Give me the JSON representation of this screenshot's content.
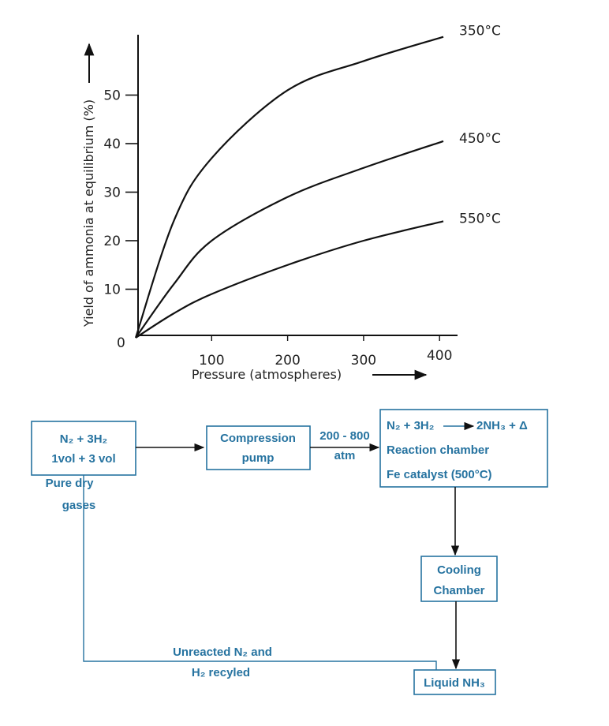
{
  "chart_data": {
    "type": "line",
    "xlabel": "Pressure (atmospheres)",
    "ylabel": "Yield of ammonia at equilibrium (%)",
    "xlim": [
      0,
      420
    ],
    "ylim": [
      0,
      65
    ],
    "x_ticks": [
      "100",
      "200",
      "300",
      "400"
    ],
    "y_ticks": [
      "10",
      "20",
      "30",
      "40",
      "50"
    ],
    "origin_label": "0",
    "grid": false,
    "x": [
      0,
      50,
      100,
      200,
      300,
      405
    ],
    "series": [
      {
        "name": "350°C",
        "values": [
          0,
          24,
          37,
          51,
          57,
          62
        ]
      },
      {
        "name": "450°C",
        "values": [
          0,
          11,
          20,
          29,
          35,
          40.5
        ]
      },
      {
        "name": "550°C",
        "values": [
          0,
          5,
          9,
          15,
          20,
          24
        ]
      }
    ]
  },
  "diagram": {
    "color": "#2673a0",
    "feed": {
      "line1": "N₂ + 3H₂",
      "line2": "1vol + 3 vol",
      "note1": "Pure dry",
      "note2": "gases"
    },
    "pump": {
      "line1": "Compression",
      "line2": "pump"
    },
    "pressure": {
      "line1": "200 - 800",
      "line2": "atm"
    },
    "reactor": {
      "line1a": "N₂ + 3H₂",
      "line1b": "2NH₃ + Δ",
      "line2": "Reaction chamber",
      "line3": "Fe catalyst (500°C)"
    },
    "cooling": {
      "line1": "Cooling",
      "line2": "Chamber"
    },
    "product": {
      "label": "Liquid NH₃"
    },
    "recycle": {
      "line1": "Unreacted N₂ and",
      "line2": "H₂ recyled"
    }
  }
}
